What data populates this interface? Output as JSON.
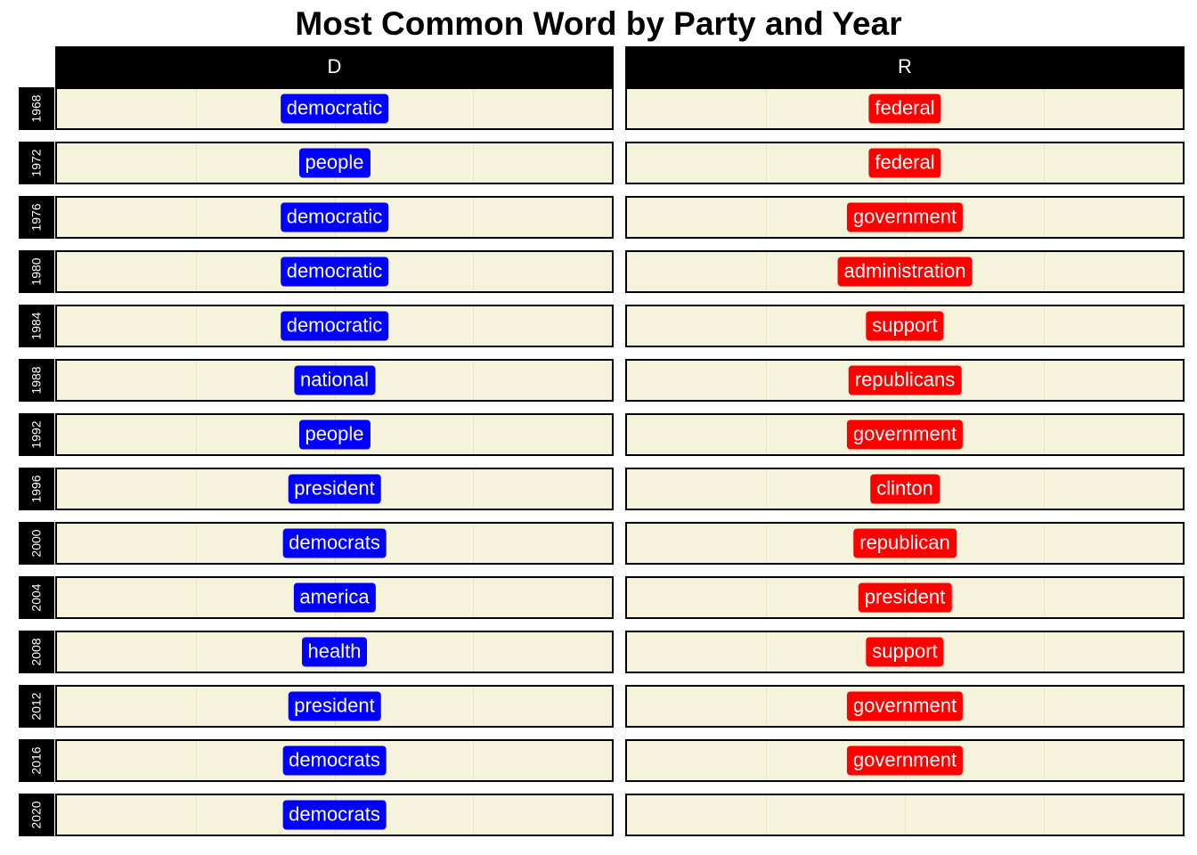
{
  "chart_data": {
    "type": "table",
    "title": "Most Common Word by Party and Year",
    "facet_columns": [
      "D",
      "R"
    ],
    "facet_rows": [
      "1968",
      "1972",
      "1976",
      "1980",
      "1984",
      "1988",
      "1992",
      "1996",
      "2000",
      "2004",
      "2008",
      "2012",
      "2016",
      "2020"
    ],
    "party_colors": {
      "D": "#0000ff",
      "R": "#ff0000"
    },
    "panel_background": "#f5f3dc",
    "cells": [
      {
        "year": "1968",
        "D": "democratic",
        "R": "federal"
      },
      {
        "year": "1972",
        "D": "people",
        "R": "federal"
      },
      {
        "year": "1976",
        "D": "democratic",
        "R": "government"
      },
      {
        "year": "1980",
        "D": "democratic",
        "R": "administration"
      },
      {
        "year": "1984",
        "D": "democratic",
        "R": "support"
      },
      {
        "year": "1988",
        "D": "national",
        "R": "republicans"
      },
      {
        "year": "1992",
        "D": "people",
        "R": "government"
      },
      {
        "year": "1996",
        "D": "president",
        "R": "clinton"
      },
      {
        "year": "2000",
        "D": "democrats",
        "R": "republican"
      },
      {
        "year": "2004",
        "D": "america",
        "R": "president"
      },
      {
        "year": "2008",
        "D": "health",
        "R": "support"
      },
      {
        "year": "2012",
        "D": "president",
        "R": "government"
      },
      {
        "year": "2016",
        "D": "democrats",
        "R": "government"
      },
      {
        "year": "2020",
        "D": "democrats",
        "R": null
      }
    ]
  }
}
